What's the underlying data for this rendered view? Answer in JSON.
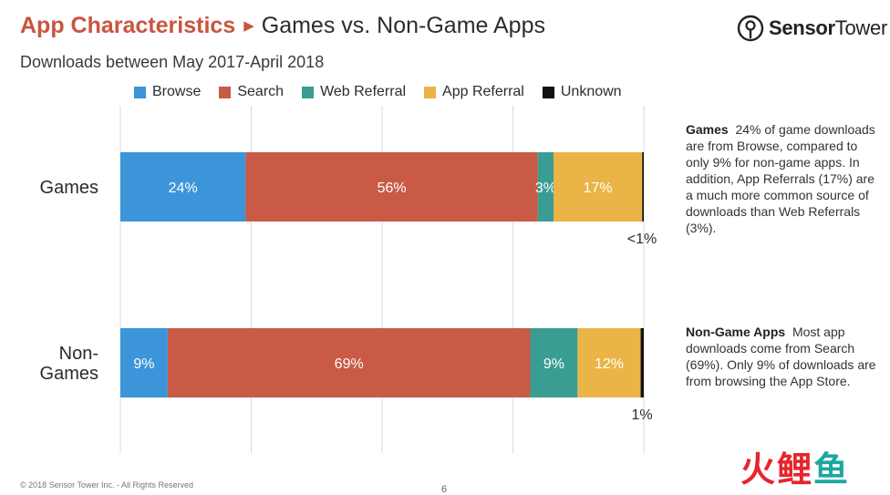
{
  "header": {
    "title": "App Characteristics",
    "subtitle_title": "Games vs. Non-Game Apps",
    "subtitle": "Downloads between May 2017-April 2018"
  },
  "logo": {
    "brand_bold": "Sensor",
    "brand_rest": "Tower",
    "icon": "sensor-tower-logo-icon"
  },
  "chart_data": {
    "type": "bar",
    "orientation": "horizontal",
    "stacked": true,
    "percent": true,
    "categories": [
      "Games",
      "Non-\nGames"
    ],
    "series": [
      {
        "name": "Browse",
        "color": "#3b95d8",
        "values": [
          24,
          9
        ],
        "labels": [
          "24%",
          "9%"
        ]
      },
      {
        "name": "Search",
        "color": "#c95a45",
        "values": [
          56,
          69
        ],
        "labels": [
          "56%",
          "69%"
        ]
      },
      {
        "name": "Web Referral",
        "color": "#3a9d93",
        "values": [
          3,
          9
        ],
        "labels": [
          "3%",
          "9%"
        ]
      },
      {
        "name": "App Referral",
        "color": "#eab546",
        "values": [
          17,
          12
        ],
        "labels": [
          "17%",
          "12%"
        ]
      },
      {
        "name": "Unknown",
        "color": "#111111",
        "values": [
          0.3,
          0.6
        ],
        "labels": [
          "",
          ""
        ]
      }
    ],
    "outside_labels": [
      "<1%",
      "1%"
    ],
    "xlim": [
      0,
      100
    ],
    "grid": true,
    "legend_position": "top"
  },
  "notes": [
    {
      "heading": "Games",
      "text": "24% of game downloads are from Browse, compared to only 9% for non-game apps. In addition, App Referrals (17%) are a much more common source of downloads than Web Referrals (3%)."
    },
    {
      "heading": "Non-Game Apps",
      "text": "Most app downloads come from Search (69%). Only 9% of downloads are from browsing the App Store."
    }
  ],
  "footer": {
    "copyright": "© 2018 Sensor Tower Inc. - All Rights Reserved",
    "page": "6"
  },
  "watermark": {
    "chars": [
      "火",
      "鲤",
      "鱼"
    ],
    "colors": [
      "#e5262c",
      "#e5262c",
      "#1ba8a1"
    ]
  }
}
